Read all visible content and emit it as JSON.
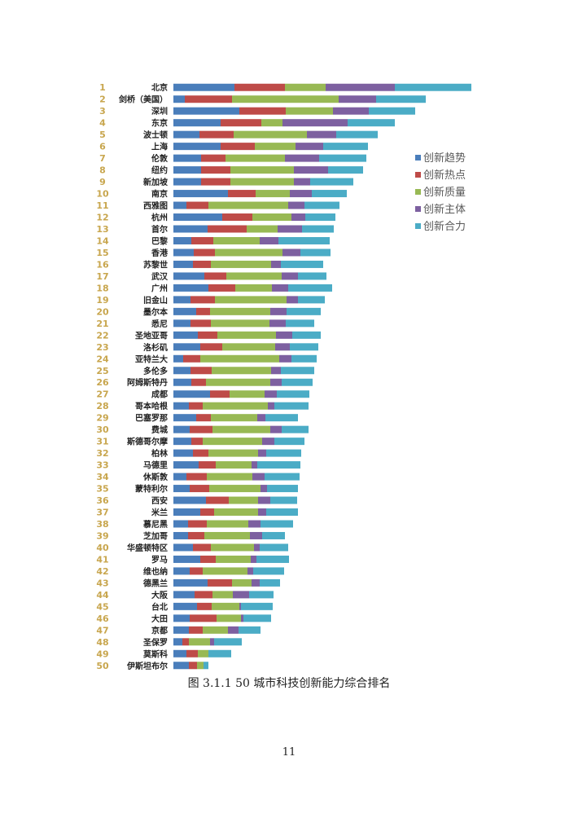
{
  "page": {
    "caption": "图 3.1.1 50 城市科技创新能力综合排名",
    "page_number": "11"
  },
  "chart_data": {
    "type": "bar",
    "orientation": "horizontal",
    "stacked": true,
    "legend_position": "right",
    "grid": false,
    "ranks": [
      "1",
      "2",
      "3",
      "4",
      "5",
      "6",
      "7",
      "8",
      "9",
      "10",
      "11",
      "12",
      "13",
      "14",
      "15",
      "16",
      "17",
      "18",
      "19",
      "20",
      "21",
      "22",
      "23",
      "24",
      "25",
      "26",
      "27",
      "28",
      "29",
      "30",
      "31",
      "32",
      "33",
      "34",
      "35",
      "36",
      "37",
      "38",
      "39",
      "40",
      "41",
      "42",
      "43",
      "44",
      "45",
      "46",
      "47",
      "48",
      "49",
      "50"
    ],
    "categories": [
      "北京",
      "剑桥（美国）",
      "深圳",
      "东京",
      "波士顿",
      "上海",
      "伦敦",
      "纽约",
      "新加坡",
      "南京",
      "西雅图",
      "杭州",
      "首尔",
      "巴黎",
      "香港",
      "苏黎世",
      "武汉",
      "广州",
      "旧金山",
      "墨尔本",
      "悉尼",
      "圣地亚哥",
      "洛杉矶",
      "亚特兰大",
      "多伦多",
      "阿姆斯特丹",
      "成都",
      "哥本哈根",
      "巴塞罗那",
      "费城",
      "斯德哥尔摩",
      "柏林",
      "马德里",
      "休斯敦",
      "蒙特利尔",
      "西安",
      "米兰",
      "慕尼黑",
      "芝加哥",
      "华盛顿特区",
      "罗马",
      "维也纳",
      "德黑兰",
      "大阪",
      "台北",
      "大田",
      "京都",
      "圣保罗",
      "莫斯科",
      "伊斯坦布尔"
    ],
    "series": [
      {
        "name": "创新趋势",
        "color": "#4a7ebb",
        "values": [
          75,
          14,
          81,
          58,
          32,
          58,
          34,
          34,
          34,
          67,
          16,
          60,
          42,
          22,
          25,
          24,
          38,
          43,
          21,
          28,
          21,
          30,
          33,
          12,
          21,
          22,
          45,
          19,
          28,
          20,
          22,
          24,
          31,
          16,
          20,
          40,
          33,
          18,
          18,
          24,
          33,
          20,
          42,
          26,
          29,
          20,
          19,
          11,
          16,
          19
        ]
      },
      {
        "name": "创新热点",
        "color": "#be4b48",
        "values": [
          62,
          58,
          57,
          50,
          42,
          42,
          30,
          36,
          36,
          34,
          27,
          37,
          48,
          27,
          26,
          22,
          27,
          33,
          30,
          17,
          25,
          24,
          27,
          21,
          26,
          18,
          24,
          17,
          18,
          28,
          14,
          19,
          21,
          25,
          24,
          28,
          17,
          23,
          20,
          22,
          19,
          16,
          30,
          22,
          18,
          33,
          17,
          8,
          14,
          10
        ]
      },
      {
        "name": "创新质量",
        "color": "#98b954",
        "values": [
          50,
          131,
          58,
          26,
          90,
          50,
          73,
          78,
          78,
          42,
          98,
          48,
          38,
          57,
          83,
          74,
          68,
          45,
          88,
          74,
          72,
          72,
          65,
          97,
          73,
          79,
          43,
          80,
          57,
          71,
          73,
          61,
          44,
          56,
          63,
          36,
          54,
          51,
          56,
          53,
          43,
          55,
          24,
          25,
          34,
          30,
          31,
          26,
          13,
          8
        ]
      },
      {
        "name": "创新主体",
        "color": "#7d60a0",
        "values": [
          85,
          46,
          44,
          80,
          36,
          34,
          42,
          42,
          20,
          27,
          20,
          17,
          30,
          23,
          22,
          12,
          20,
          20,
          14,
          20,
          20,
          20,
          18,
          15,
          12,
          14,
          15,
          8,
          10,
          14,
          15,
          10,
          7,
          15,
          8,
          15,
          10,
          15,
          15,
          7,
          7,
          7,
          10,
          20,
          2,
          3,
          13,
          5,
          0,
          0
        ]
      },
      {
        "name": "创新合力",
        "color": "#4bacc6",
        "values": [
          94,
          61,
          57,
          58,
          51,
          55,
          58,
          43,
          53,
          43,
          43,
          37,
          39,
          63,
          37,
          52,
          35,
          54,
          33,
          42,
          35,
          35,
          35,
          31,
          41,
          38,
          40,
          42,
          40,
          33,
          37,
          43,
          53,
          43,
          38,
          33,
          39,
          40,
          28,
          35,
          40,
          38,
          25,
          30,
          39,
          34,
          27,
          34,
          28,
          6
        ]
      }
    ]
  }
}
